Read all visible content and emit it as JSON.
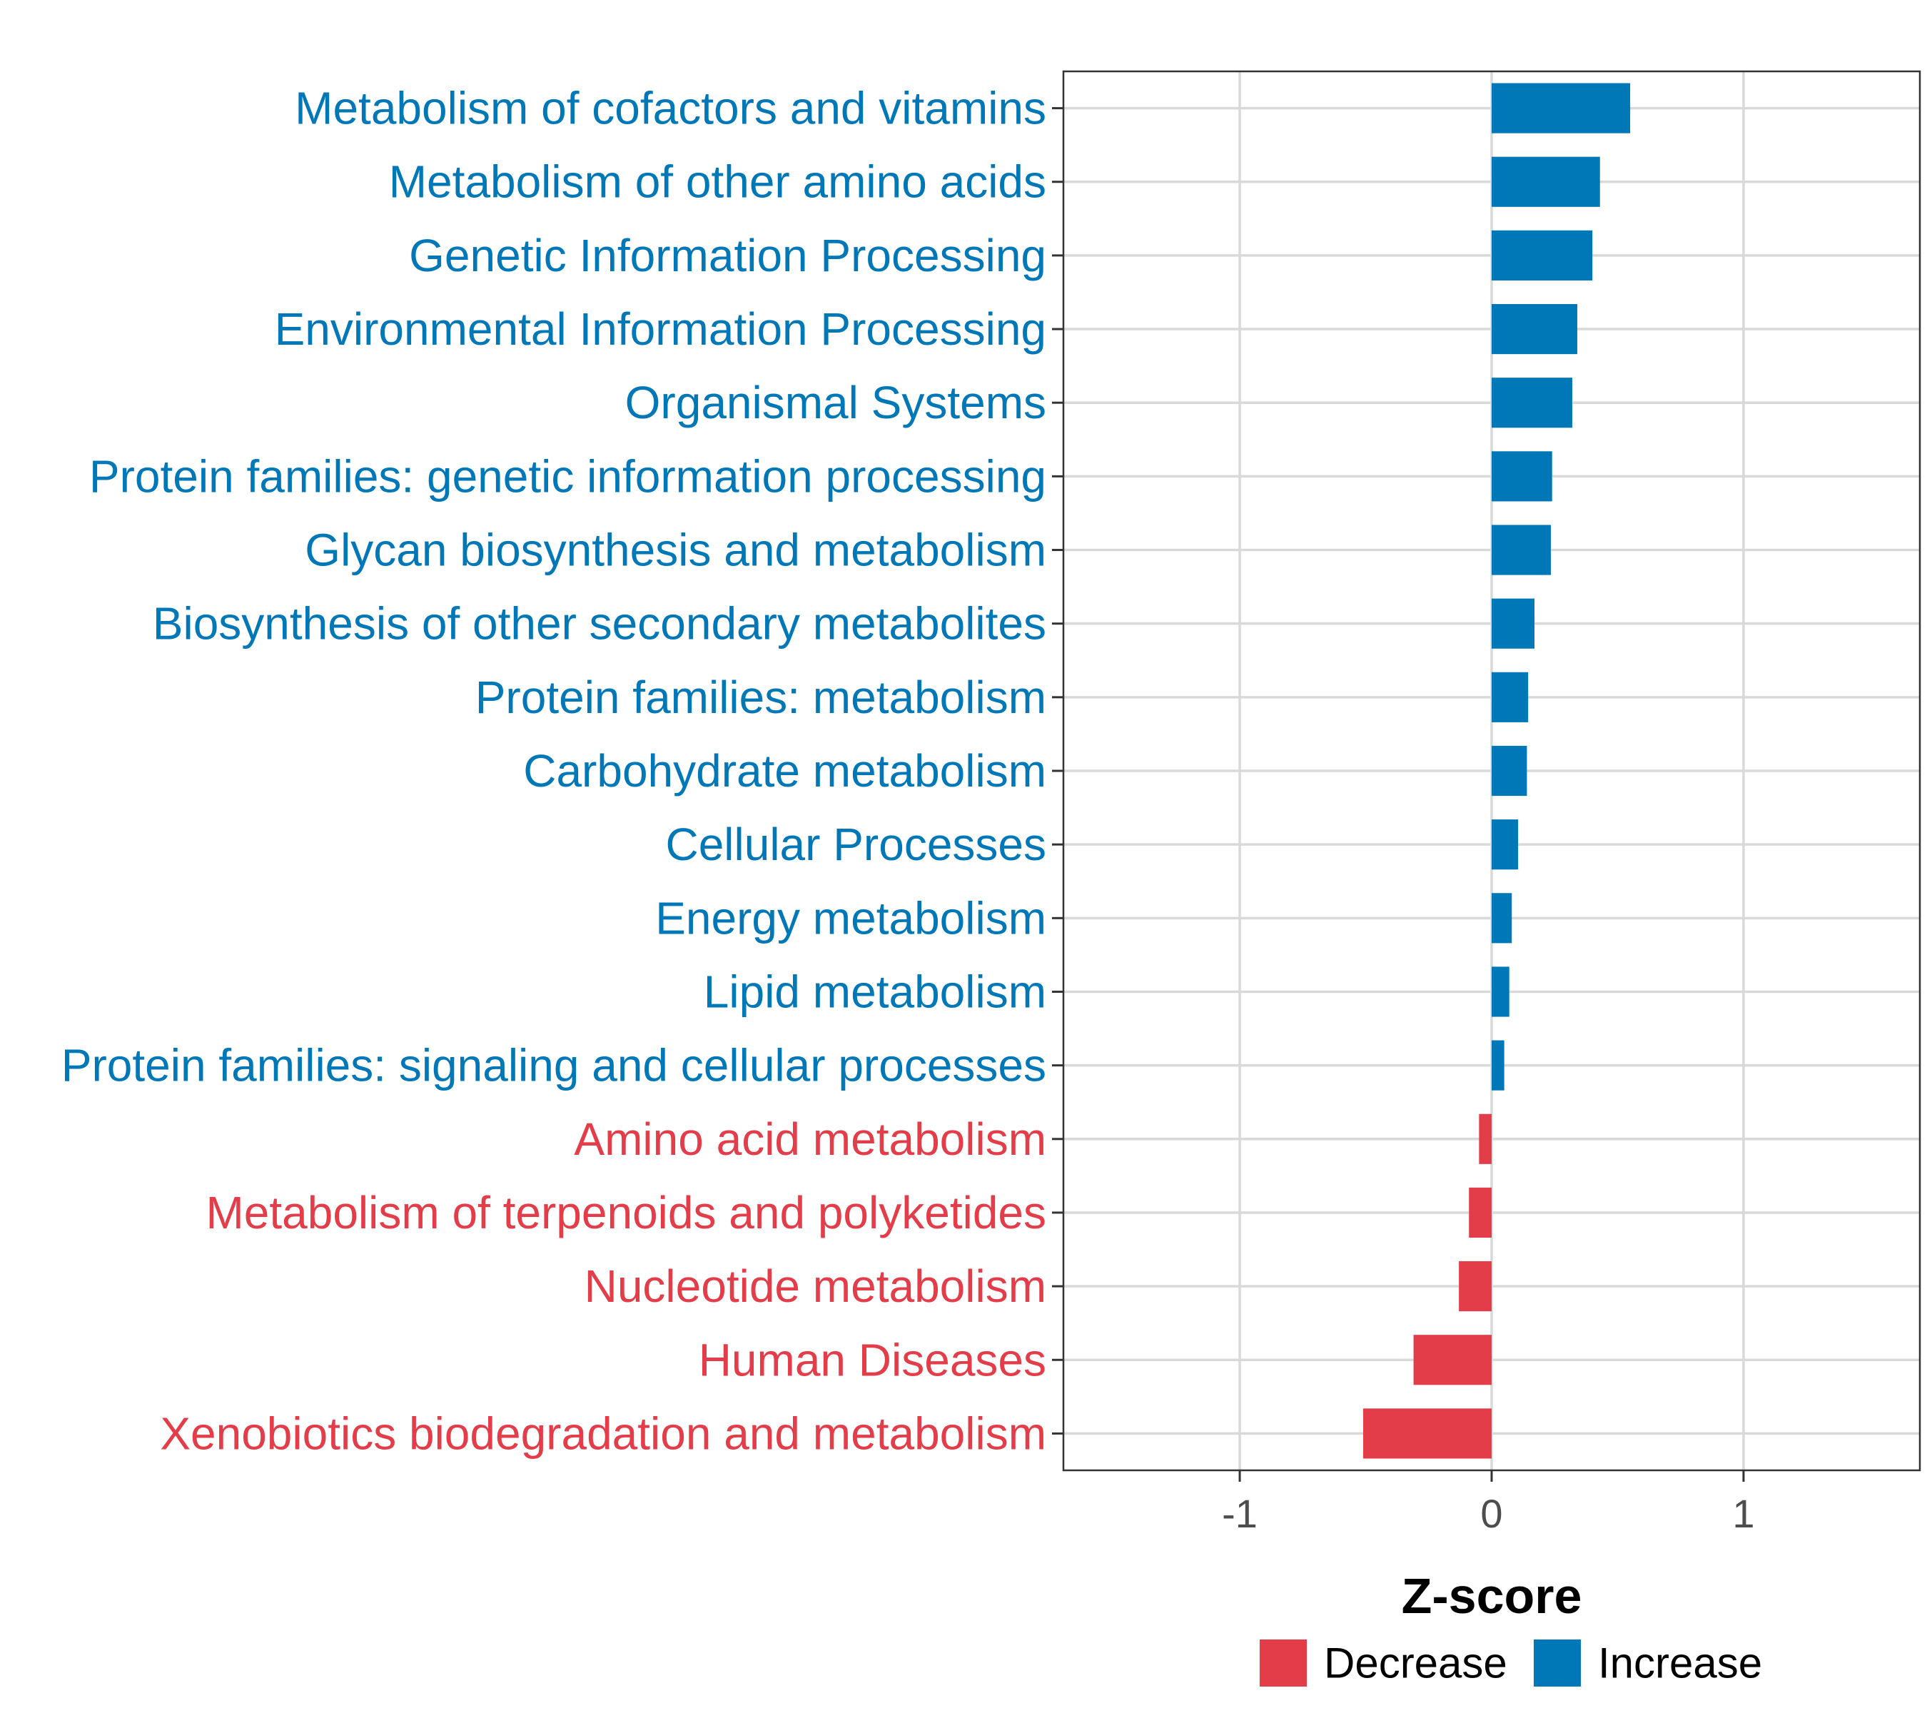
{
  "chart_data": {
    "type": "bar",
    "orientation": "horizontal",
    "title": "",
    "xlabel": "Z-score",
    "ylabel": "",
    "xlim": [
      -1.7,
      1.7
    ],
    "xticks": [
      -1,
      0,
      1
    ],
    "xtick_labels": [
      "-1",
      "0",
      "1"
    ],
    "grid": true,
    "categories": [
      "Metabolism of cofactors and vitamins",
      "Metabolism of other amino acids",
      "Genetic Information Processing",
      "Environmental Information Processing",
      "Organismal Systems",
      "Protein families: genetic information processing",
      "Glycan biosynthesis and metabolism",
      "Biosynthesis of other secondary metabolites",
      "Protein families: metabolism",
      "Carbohydrate metabolism",
      "Cellular Processes",
      "Energy metabolism",
      "Lipid metabolism",
      "Protein families: signaling and cellular processes",
      "Amino acid metabolism",
      "Metabolism of terpenoids and polyketides",
      "Nucleotide metabolism",
      "Human Diseases",
      "Xenobiotics biodegradation and metabolism"
    ],
    "values": [
      0.55,
      0.43,
      0.4,
      0.34,
      0.32,
      0.24,
      0.235,
      0.17,
      0.145,
      0.14,
      0.105,
      0.08,
      0.07,
      0.05,
      -0.05,
      -0.09,
      -0.13,
      -0.31,
      -0.51
    ],
    "groups": [
      "Increase",
      "Increase",
      "Increase",
      "Increase",
      "Increase",
      "Increase",
      "Increase",
      "Increase",
      "Increase",
      "Increase",
      "Increase",
      "Increase",
      "Increase",
      "Increase",
      "Decrease",
      "Decrease",
      "Decrease",
      "Decrease",
      "Decrease"
    ],
    "legend": {
      "position": "bottom",
      "items": [
        {
          "label": "Decrease",
          "color": "#e43d4a"
        },
        {
          "label": "Increase",
          "color": "#0077b7"
        }
      ]
    },
    "colors": {
      "Increase": "#0077b7",
      "Decrease": "#e43d4a"
    }
  }
}
